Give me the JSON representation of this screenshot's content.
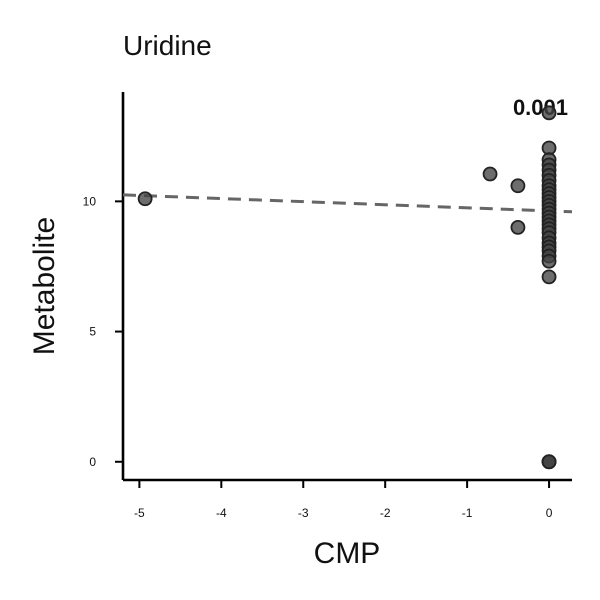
{
  "chart_data": {
    "type": "scatter",
    "title": "Uridine",
    "xlabel": "CMP",
    "ylabel": "Metabolite",
    "xlim": [
      -5.2,
      0.28
    ],
    "ylim": [
      -0.7,
      14.2
    ],
    "xticks": [
      -5,
      -4,
      -3,
      -2,
      -1,
      0
    ],
    "yticks": [
      0,
      5,
      10
    ],
    "xtick_labels": [
      "-5",
      "-4",
      "-3",
      "-2",
      "-1",
      "0"
    ],
    "ytick_labels": [
      "0",
      "5",
      "10"
    ],
    "grid": false,
    "annotation": "0.001",
    "trendline": {
      "style": "dashed",
      "color": "#666666",
      "x": [
        -5.2,
        0.28
      ],
      "y": [
        10.25,
        9.6
      ]
    },
    "series": [
      {
        "color": "#444444",
        "points": [
          [
            -4.93,
            10.1
          ],
          [
            -0.72,
            11.05
          ],
          [
            -0.38,
            10.6
          ],
          [
            -0.38,
            9.0
          ],
          [
            0,
            13.4
          ],
          [
            0,
            12.05
          ],
          [
            0,
            11.6
          ],
          [
            0,
            11.4
          ],
          [
            0,
            11.2
          ],
          [
            0,
            11.0
          ],
          [
            0,
            10.8
          ],
          [
            0,
            10.6
          ],
          [
            0,
            10.45
          ],
          [
            0,
            10.3
          ],
          [
            0,
            10.15
          ],
          [
            0,
            10.0
          ],
          [
            0,
            9.85
          ],
          [
            0,
            9.7
          ],
          [
            0,
            9.55
          ],
          [
            0,
            9.4
          ],
          [
            0,
            9.25
          ],
          [
            0,
            9.1
          ],
          [
            0,
            8.95
          ],
          [
            0,
            8.8
          ],
          [
            0,
            8.6
          ],
          [
            0,
            8.4
          ],
          [
            0,
            8.25
          ],
          [
            0,
            8.1
          ],
          [
            0,
            7.9
          ],
          [
            0,
            7.7
          ],
          [
            0,
            7.1
          ],
          [
            0,
            0
          ],
          [
            0,
            0
          ],
          [
            0,
            0
          ],
          [
            0,
            0
          ]
        ]
      }
    ]
  }
}
